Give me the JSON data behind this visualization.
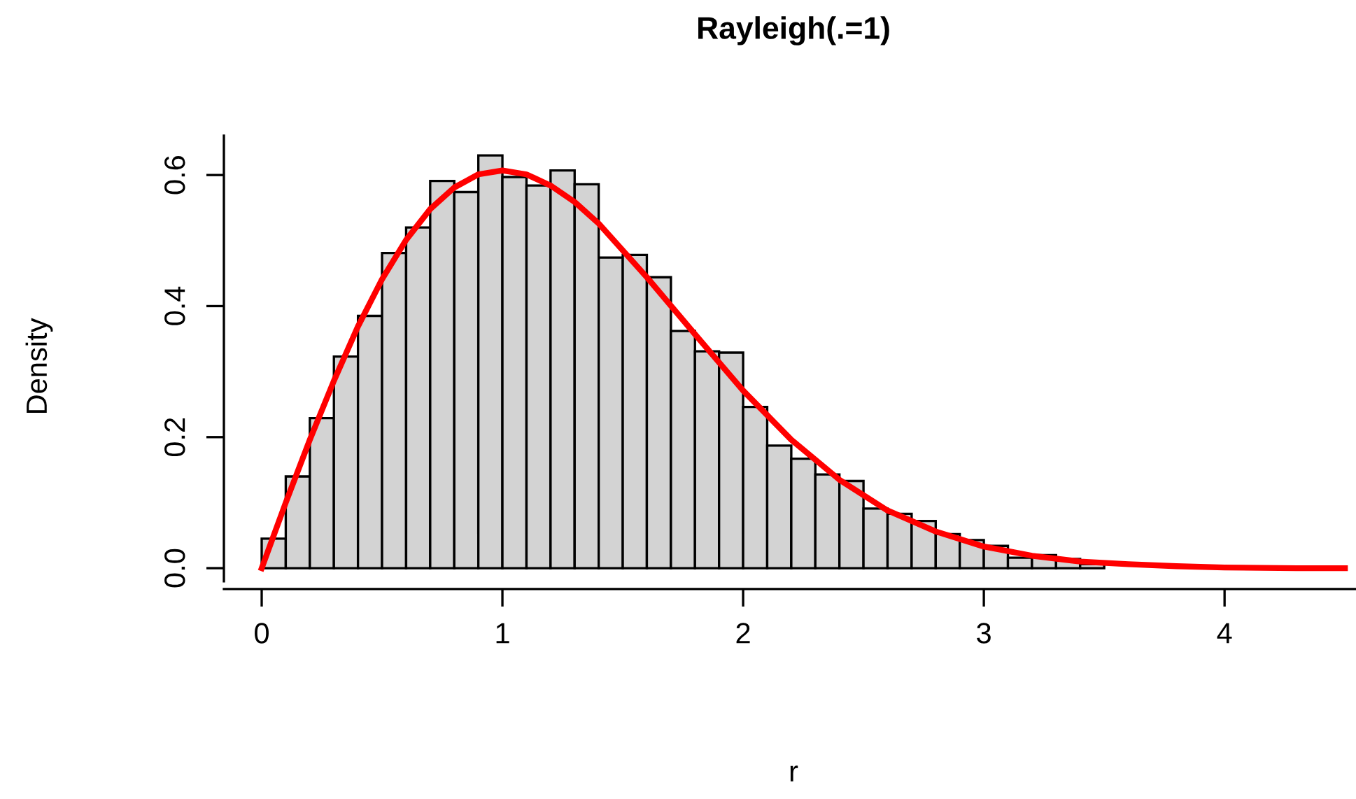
{
  "chart_data": {
    "type": "histogram",
    "title": "Rayleigh(.=1)",
    "xlabel": "r",
    "ylabel": "Density",
    "series": [
      {
        "type": "histogram",
        "color": "#d3d3d3",
        "bins": [
          0,
          0.1,
          0.2,
          0.3,
          0.4,
          0.5,
          0.6,
          0.7,
          0.8,
          0.9,
          1.0,
          1.1,
          1.2,
          1.3,
          1.4,
          1.5,
          1.6,
          1.7,
          1.8,
          1.9,
          2.0,
          2.1,
          2.2,
          2.3,
          2.4,
          2.5,
          2.6,
          2.7,
          2.8,
          2.9,
          3.0,
          3.1,
          3.2,
          3.3,
          3.4,
          3.5,
          3.6,
          3.7,
          3.8,
          3.9
        ],
        "values": [
          0.045,
          0.14,
          0.229,
          0.323,
          0.385,
          0.481,
          0.52,
          0.591,
          0.574,
          0.63,
          0.597,
          0.584,
          0.607,
          0.586,
          0.474,
          0.478,
          0.444,
          0.362,
          0.331,
          0.329,
          0.246,
          0.187,
          0.167,
          0.143,
          0.133,
          0.091,
          0.083,
          0.072,
          0.052,
          0.043,
          0.034,
          0.016,
          0.02,
          0.014,
          0.006,
          null,
          null,
          null,
          null
        ]
      },
      {
        "type": "line",
        "color": "#ff0000",
        "x": [
          0,
          0.1,
          0.2,
          0.3,
          0.4,
          0.5,
          0.6,
          0.7,
          0.8,
          0.9,
          1.0,
          1.1,
          1.2,
          1.3,
          1.4,
          1.6,
          1.8,
          2.0,
          2.2,
          2.4,
          2.6,
          2.8,
          3.0,
          3.2,
          3.4,
          3.6,
          3.8,
          4.0,
          4.3,
          4.5
        ],
        "values": [
          0,
          0.1,
          0.196,
          0.286,
          0.369,
          0.441,
          0.501,
          0.548,
          0.581,
          0.601,
          0.607,
          0.601,
          0.584,
          0.559,
          0.526,
          0.444,
          0.357,
          0.271,
          0.196,
          0.135,
          0.088,
          0.056,
          0.033,
          0.019,
          0.01,
          0.006,
          0.003,
          0.001,
          0.0,
          0.0
        ]
      }
    ],
    "xlim": [
      -0.157,
      4.546
    ],
    "ylim": [
      -0.02,
      0.66
    ],
    "xticks": [
      0,
      1,
      2,
      3,
      4
    ],
    "yticks": [
      {
        "value": 0,
        "label": "0.0"
      },
      {
        "value": 0.2,
        "label": "0.2"
      },
      {
        "value": 0.4,
        "label": "0.4"
      },
      {
        "value": 0.6,
        "label": "0.6"
      }
    ],
    "marker": "none",
    "line_style": "solid"
  }
}
